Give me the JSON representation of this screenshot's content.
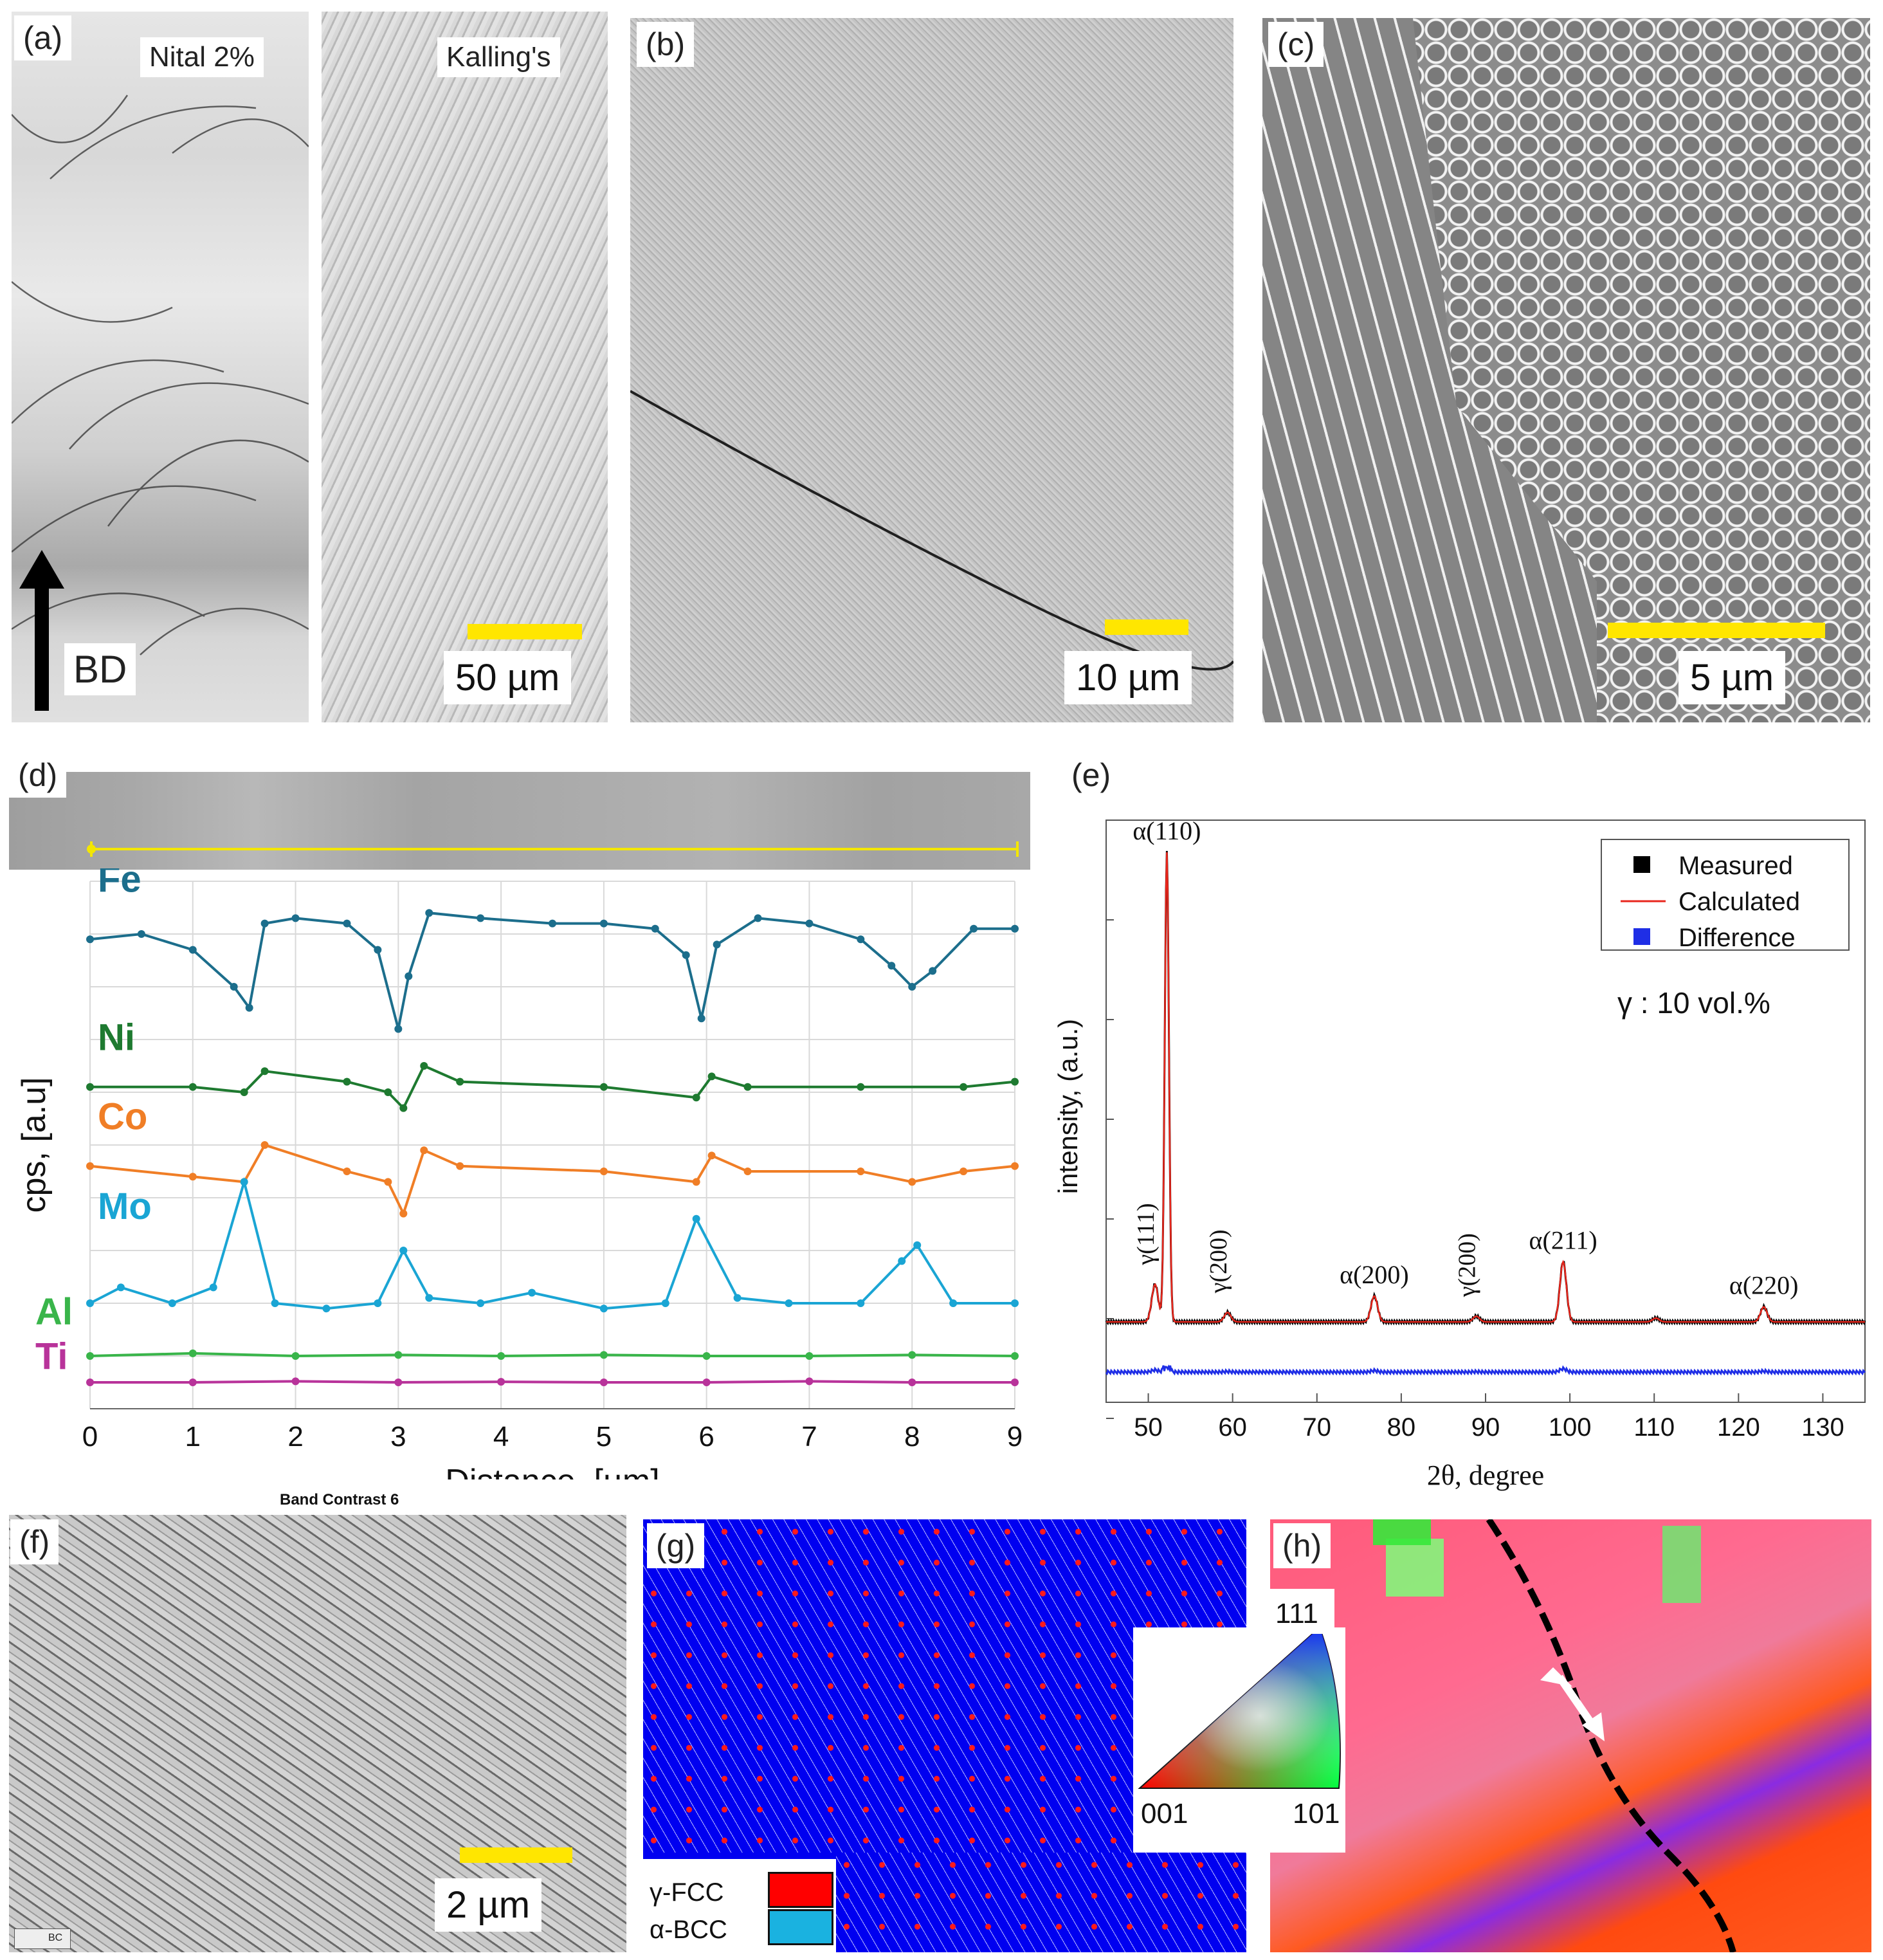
{
  "panels": {
    "a": {
      "label": "(a)",
      "etch1": "Nital 2%",
      "etch2": "Kalling's",
      "direction": "BD",
      "scale": "50 µm"
    },
    "b": {
      "label": "(b)",
      "scale": "10 µm"
    },
    "c": {
      "label": "(c)",
      "scale": "5 µm"
    },
    "d": {
      "label": "(d)"
    },
    "e": {
      "label": "(e)"
    },
    "f": {
      "label": "(f)",
      "title": "Band Contrast 6",
      "scale": "2 µm",
      "corner": "BC"
    },
    "g": {
      "label": "(g)",
      "legend": [
        {
          "name": "γ-FCC",
          "color": "#ff0000"
        },
        {
          "name": "α-BCC",
          "color": "#1ab2e0"
        }
      ]
    },
    "h": {
      "label": "(h)",
      "ipf_top": "111",
      "ipf_left": "001",
      "ipf_right": "101"
    }
  },
  "chart_data": [
    {
      "type": "line",
      "panel": "d",
      "xlabel": "Distance, [µm]",
      "ylabel": "cps, [a.u]",
      "xlim": [
        0,
        9
      ],
      "xticks": [
        0,
        1,
        2,
        3,
        4,
        5,
        6,
        7,
        8,
        9
      ],
      "grid": true,
      "series": [
        {
          "name": "Fe",
          "color": "#1c6e8c",
          "x": [
            0,
            0.5,
            1,
            1.4,
            1.55,
            1.7,
            2,
            2.5,
            2.8,
            3.0,
            3.1,
            3.3,
            3.8,
            4.5,
            5,
            5.5,
            5.8,
            5.95,
            6.1,
            6.5,
            7,
            7.5,
            7.8,
            8.0,
            8.2,
            8.6,
            9
          ],
          "values": [
            9.5,
            9.6,
            9.3,
            8.6,
            8.2,
            9.8,
            9.9,
            9.8,
            9.3,
            7.8,
            8.8,
            10.0,
            9.9,
            9.8,
            9.8,
            9.7,
            9.2,
            8.0,
            9.4,
            9.9,
            9.8,
            9.5,
            9.0,
            8.6,
            8.9,
            9.7,
            9.7
          ]
        },
        {
          "name": "Ni",
          "color": "#1e7a30",
          "x": [
            0,
            1,
            1.5,
            1.7,
            2.5,
            2.9,
            3.05,
            3.25,
            3.6,
            5,
            5.9,
            6.05,
            6.4,
            7.5,
            8.5,
            9
          ],
          "values": [
            6.7,
            6.7,
            6.6,
            7.0,
            6.8,
            6.6,
            6.3,
            7.1,
            6.8,
            6.7,
            6.5,
            6.9,
            6.7,
            6.7,
            6.7,
            6.8
          ]
        },
        {
          "name": "Co",
          "color": "#f07e26",
          "x": [
            0,
            1,
            1.5,
            1.7,
            2.5,
            2.9,
            3.05,
            3.25,
            3.6,
            5,
            5.9,
            6.05,
            6.4,
            7.5,
            8.0,
            8.5,
            9
          ],
          "values": [
            5.2,
            5.0,
            4.9,
            5.6,
            5.1,
            4.9,
            4.3,
            5.5,
            5.2,
            5.1,
            4.9,
            5.4,
            5.1,
            5.1,
            4.9,
            5.1,
            5.2
          ]
        },
        {
          "name": "Mo",
          "color": "#1aa5d4",
          "x": [
            0,
            0.3,
            0.8,
            1.2,
            1.5,
            1.8,
            2.3,
            2.8,
            3.05,
            3.3,
            3.8,
            4.3,
            5,
            5.6,
            5.9,
            6.3,
            6.8,
            7.5,
            7.9,
            8.05,
            8.4,
            9
          ],
          "values": [
            2.6,
            2.9,
            2.6,
            2.9,
            4.9,
            2.6,
            2.5,
            2.6,
            3.6,
            2.7,
            2.6,
            2.8,
            2.5,
            2.6,
            4.2,
            2.7,
            2.6,
            2.6,
            3.4,
            3.7,
            2.6,
            2.6
          ]
        },
        {
          "name": "Al",
          "color": "#39b54a",
          "x": [
            0,
            1,
            2,
            3,
            4,
            5,
            6,
            7,
            8,
            9
          ],
          "values": [
            1.6,
            1.65,
            1.6,
            1.62,
            1.6,
            1.62,
            1.6,
            1.6,
            1.62,
            1.6
          ]
        },
        {
          "name": "Ti",
          "color": "#b8339a",
          "x": [
            0,
            1,
            2,
            3,
            4,
            5,
            6,
            7,
            8,
            9
          ],
          "values": [
            1.1,
            1.1,
            1.12,
            1.1,
            1.11,
            1.1,
            1.1,
            1.12,
            1.1,
            1.1
          ]
        }
      ]
    },
    {
      "type": "line",
      "panel": "e",
      "xlabel": "2θ, degree",
      "ylabel": "intensity, (a.u.)",
      "xlim": [
        45,
        135
      ],
      "xticks": [
        50,
        60,
        70,
        80,
        90,
        100,
        110,
        120,
        130
      ],
      "legend": [
        {
          "name": "Measured",
          "color": "#000000",
          "marker": "square"
        },
        {
          "name": "Calculated",
          "color": "#e8261c",
          "marker": "line"
        },
        {
          "name": "Difference",
          "color": "#1f2ee6",
          "marker": "square"
        }
      ],
      "legend_position": "top-right",
      "annotation": "γ : 10 vol.%",
      "peaks": [
        {
          "label": "γ(111)",
          "two_theta": 50.8,
          "height": 0.08,
          "rotated": true
        },
        {
          "label": "α(110)",
          "two_theta": 52.2,
          "height": 1.0,
          "rotated": false
        },
        {
          "label": "γ(200)",
          "two_theta": 59.4,
          "height": 0.02,
          "rotated": true
        },
        {
          "label": "α(200)",
          "two_theta": 76.8,
          "height": 0.055,
          "rotated": false
        },
        {
          "label": "γ(200)",
          "two_theta": 88.9,
          "height": 0.012,
          "rotated": true
        },
        {
          "label": "α(211)",
          "two_theta": 99.2,
          "height": 0.128,
          "rotated": false
        },
        {
          "two_theta": 110.2,
          "height": 0.008
        },
        {
          "label": "α(220)",
          "two_theta": 123.0,
          "height": 0.032,
          "rotated": false
        }
      ]
    }
  ]
}
